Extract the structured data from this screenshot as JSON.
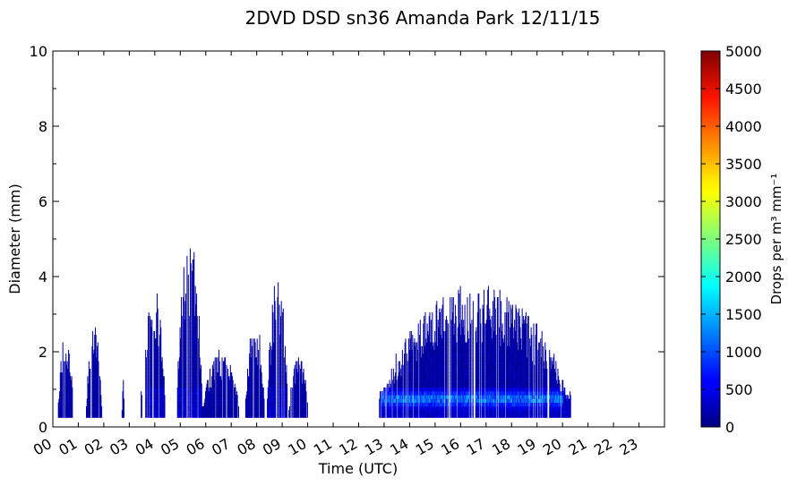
{
  "chart_data": {
    "type": "heatmap",
    "title": "2DVD DSD sn36 Amanda Park 12/11/15",
    "xlabel": "Time (UTC)",
    "ylabel": "Diameter (mm)",
    "colorbar_label": "Drops per m³ mm⁻¹",
    "xlim": [
      0,
      24
    ],
    "ylim": [
      0,
      10
    ],
    "x_ticks": [
      "00",
      "01",
      "02",
      "03",
      "04",
      "05",
      "06",
      "07",
      "08",
      "09",
      "10",
      "11",
      "12",
      "13",
      "14",
      "15",
      "16",
      "17",
      "18",
      "19",
      "20",
      "21",
      "22",
      "23"
    ],
    "y_ticks": [
      "0",
      "2",
      "4",
      "6",
      "8",
      "10"
    ],
    "colorbar_range": [
      0,
      5000
    ],
    "colorbar_ticks": [
      "0",
      "500",
      "1000",
      "1500",
      "2000",
      "2500",
      "3000",
      "3500",
      "4000",
      "4500",
      "5000"
    ],
    "colormap": "jet",
    "grid": false,
    "events": [
      {
        "start": 0.2,
        "end": 0.8,
        "max_diameter": 2.5
      },
      {
        "start": 1.3,
        "end": 1.9,
        "max_diameter": 2.7
      },
      {
        "start": 2.7,
        "end": 2.8,
        "max_diameter": 1.3
      },
      {
        "start": 3.45,
        "end": 4.4,
        "max_diameter": 3.9
      },
      {
        "start": 4.85,
        "end": 5.85,
        "max_diameter": 5.1
      },
      {
        "start": 5.85,
        "end": 7.3,
        "max_diameter": 2.0
      },
      {
        "start": 7.55,
        "end": 8.3,
        "max_diameter": 2.9
      },
      {
        "start": 8.4,
        "end": 9.2,
        "max_diameter": 4.1
      },
      {
        "start": 9.25,
        "end": 10.0,
        "max_diameter": 1.9
      },
      {
        "start": 12.8,
        "end": 20.3,
        "max_diameter": 3.8
      }
    ],
    "core_band": {
      "start": 12.9,
      "end": 20.0,
      "diameter_min": 0.4,
      "diameter_max": 1.0,
      "peak_value": 1500
    }
  }
}
